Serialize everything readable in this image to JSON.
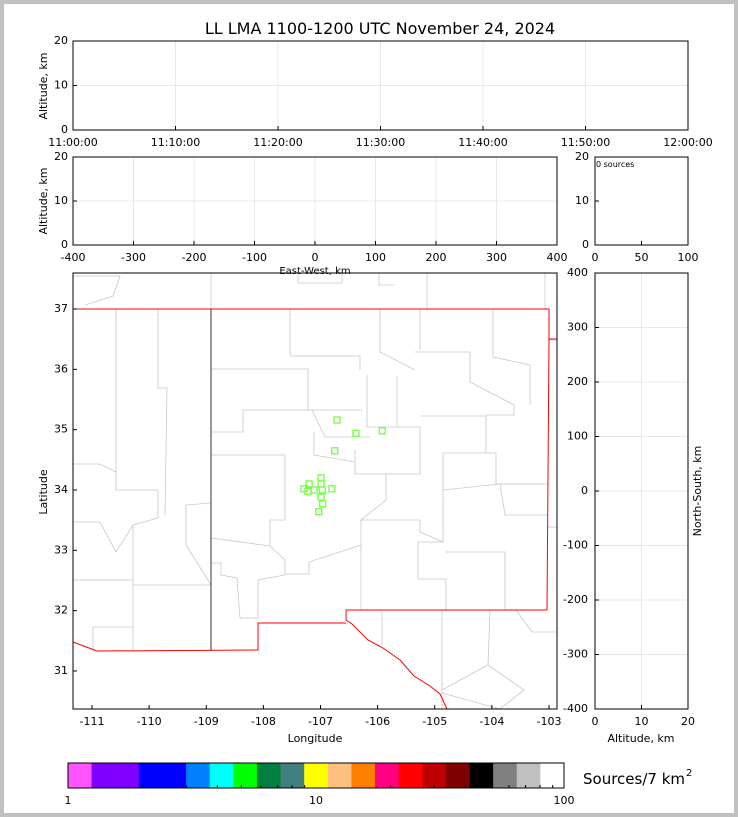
{
  "chart_data": [
    {
      "type": "scatter",
      "panel": "time-altitude",
      "title": "LL LMA 1100-1200 UTC November 24, 2024",
      "ylabel": "Altitude, km",
      "xticks": [
        "11:00:00",
        "11:10:00",
        "11:20:00",
        "11:30:00",
        "11:40:00",
        "11:50:00",
        "12:00:00"
      ],
      "yticks": [
        0,
        10,
        20
      ],
      "ylim": [
        0,
        20
      ],
      "grid": true,
      "points": []
    },
    {
      "type": "scatter",
      "panel": "east-west-altitude",
      "xlabel": "East-West, km",
      "ylabel": "Altitude, km",
      "xticks": [
        -400,
        -300,
        -200,
        -100,
        0,
        100,
        200,
        300,
        400
      ],
      "xlim": [
        -400,
        400
      ],
      "yticks": [
        0,
        10,
        20
      ],
      "ylim": [
        0,
        20
      ],
      "grid": true,
      "points": []
    },
    {
      "type": "histogram",
      "panel": "altitude-histogram",
      "annotation": "0 sources",
      "xticks": [
        0,
        50,
        100
      ],
      "xlim": [
        0,
        100
      ],
      "yticks": [
        0,
        10,
        20
      ],
      "ylim": [
        0,
        20
      ]
    },
    {
      "type": "scatter",
      "panel": "plan-view",
      "xlabel": "Longitude",
      "ylabel": "Latitude",
      "xticks": [
        -111,
        -110,
        -109,
        -108,
        -107,
        -106,
        -105,
        -104,
        -103
      ],
      "xlim": [
        -111.33,
        -102.86
      ],
      "yticks": [
        31,
        32,
        33,
        34,
        35,
        36,
        37
      ],
      "ylim": [
        30.38,
        37.6
      ],
      "marker_color": "#66ff33",
      "state_border_color": "#ff0000",
      "points": [
        {
          "lon": -106.71,
          "lat": 35.16
        },
        {
          "lon": -106.38,
          "lat": 34.94
        },
        {
          "lon": -105.92,
          "lat": 34.98
        },
        {
          "lon": -106.75,
          "lat": 34.65
        },
        {
          "lon": -106.99,
          "lat": 34.2
        },
        {
          "lon": -106.99,
          "lat": 34.1
        },
        {
          "lon": -107.2,
          "lat": 34.1
        },
        {
          "lon": -107.29,
          "lat": 34.02
        },
        {
          "lon": -107.22,
          "lat": 33.98
        },
        {
          "lon": -107.11,
          "lat": 34.0
        },
        {
          "lon": -106.97,
          "lat": 34.0
        },
        {
          "lon": -106.8,
          "lat": 34.02
        },
        {
          "lon": -106.99,
          "lat": 33.88
        },
        {
          "lon": -106.96,
          "lat": 33.77
        },
        {
          "lon": -107.03,
          "lat": 33.64
        }
      ]
    },
    {
      "type": "scatter",
      "panel": "altitude-north-south",
      "xlabel": "Altitude, km",
      "ylabel": "North-South, km",
      "xticks": [
        0,
        10,
        20
      ],
      "xlim": [
        0,
        20
      ],
      "yticks": [
        -400,
        -300,
        -200,
        -100,
        0,
        100,
        200,
        300,
        400
      ],
      "ylim": [
        -400,
        400
      ],
      "grid": true,
      "points": []
    }
  ],
  "colorbar": {
    "label": "Sources/7 km",
    "label_sup": "2",
    "ticks": [
      "1",
      "10",
      "100"
    ],
    "scale": "log",
    "range": [
      1,
      100
    ],
    "colors": [
      "#ff55ff",
      "#8000ff",
      "#8000ff",
      "#0000ff",
      "#0000ff",
      "#0080ff",
      "#00ffff",
      "#00ff00",
      "#008040",
      "#408080",
      "#ffff00",
      "#ffc080",
      "#ff8000",
      "#ff0080",
      "#ff0000",
      "#c00000",
      "#800000",
      "#000000",
      "#808080",
      "#c0c0c0",
      "#ffffff"
    ]
  }
}
